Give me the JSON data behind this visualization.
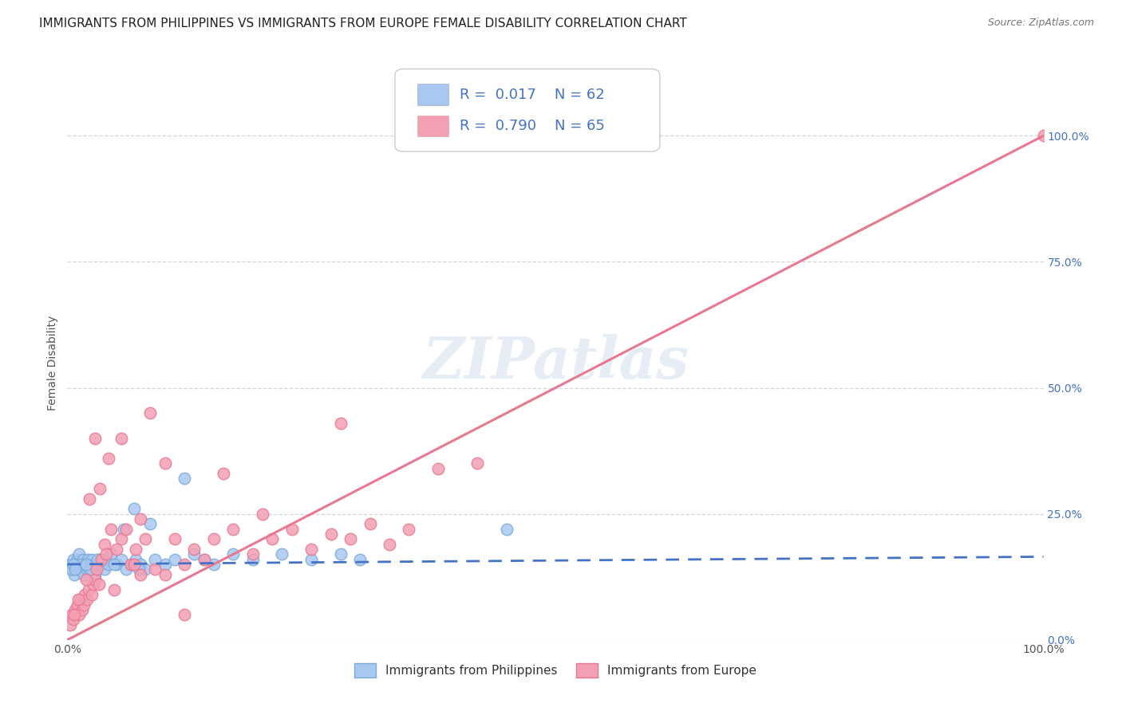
{
  "title": "IMMIGRANTS FROM PHILIPPINES VS IMMIGRANTS FROM EUROPE FEMALE DISABILITY CORRELATION CHART",
  "source": "Source: ZipAtlas.com",
  "ylabel": "Female Disability",
  "ytick_labels": [
    "0.0%",
    "25.0%",
    "50.0%",
    "75.0%",
    "100.0%"
  ],
  "ytick_vals": [
    0,
    25,
    50,
    75,
    100
  ],
  "xlim": [
    0,
    100
  ],
  "ylim": [
    0,
    110
  ],
  "series1_label": "Immigrants from Philippines",
  "series2_label": "Immigrants from Europe",
  "series1_color": "#a8c8f0",
  "series2_color": "#f4a0b4",
  "series1_edge_color": "#7aaad8",
  "series2_edge_color": "#e87890",
  "series1_line_color": "#4472c4",
  "series2_line_color": "#e87890",
  "legend_r1": "0.017",
  "legend_n1": "62",
  "legend_r2": "0.790",
  "legend_n2": "65",
  "watermark": "ZIPatlas",
  "background_color": "#ffffff",
  "series1_x": [
    0.3,
    0.5,
    0.6,
    0.7,
    0.8,
    0.9,
    1.0,
    1.1,
    1.2,
    1.3,
    1.5,
    1.6,
    1.7,
    1.8,
    2.0,
    2.1,
    2.2,
    2.3,
    2.5,
    2.7,
    2.8,
    3.0,
    3.2,
    3.5,
    3.8,
    4.0,
    4.2,
    4.5,
    5.0,
    5.5,
    6.0,
    6.5,
    7.0,
    7.5,
    8.0,
    9.0,
    10.0,
    11.0,
    12.0,
    13.0,
    14.0,
    15.0,
    17.0,
    19.0,
    22.0,
    25.0,
    28.0,
    30.0,
    1.4,
    2.4,
    3.3,
    4.8,
    6.8,
    8.5,
    0.4,
    1.9,
    3.1,
    5.8,
    7.3,
    45.0,
    0.6,
    0.8
  ],
  "series1_y": [
    15,
    14,
    16,
    13,
    15,
    14,
    16,
    15,
    17,
    14,
    15,
    16,
    13,
    15,
    14,
    16,
    15,
    14,
    16,
    15,
    13,
    15,
    16,
    15,
    14,
    16,
    15,
    17,
    15,
    16,
    14,
    15,
    16,
    15,
    14,
    16,
    15,
    16,
    32,
    17,
    16,
    15,
    17,
    16,
    17,
    16,
    17,
    16,
    15,
    14,
    16,
    15,
    26,
    23,
    14,
    15,
    16,
    22,
    14,
    22,
    15,
    14
  ],
  "series2_x": [
    0.3,
    0.5,
    0.6,
    0.8,
    1.0,
    1.2,
    1.4,
    1.5,
    1.7,
    1.8,
    2.0,
    2.2,
    2.5,
    2.7,
    2.8,
    3.0,
    3.2,
    3.5,
    3.8,
    4.0,
    4.5,
    5.0,
    5.5,
    6.0,
    6.5,
    7.0,
    7.5,
    8.0,
    9.0,
    10.0,
    11.0,
    12.0,
    13.0,
    14.0,
    15.0,
    17.0,
    19.0,
    21.0,
    23.0,
    25.0,
    27.0,
    29.0,
    31.0,
    33.0,
    35.0,
    38.0,
    42.0,
    100.0,
    1.9,
    3.3,
    5.5,
    8.5,
    0.7,
    2.3,
    4.2,
    6.8,
    10.0,
    16.0,
    20.0,
    28.0,
    1.1,
    2.8,
    4.8,
    7.5,
    12.0
  ],
  "series2_y": [
    3,
    5,
    4,
    6,
    7,
    5,
    8,
    6,
    7,
    9,
    8,
    10,
    9,
    11,
    12,
    14,
    11,
    16,
    19,
    17,
    22,
    18,
    20,
    22,
    15,
    18,
    24,
    20,
    14,
    13,
    20,
    15,
    18,
    16,
    20,
    22,
    17,
    20,
    22,
    18,
    21,
    20,
    23,
    19,
    22,
    34,
    35,
    100,
    12,
    30,
    40,
    45,
    5,
    28,
    36,
    15,
    35,
    33,
    25,
    43,
    8,
    40,
    10,
    13,
    5
  ],
  "title_fontsize": 11,
  "source_fontsize": 9,
  "tick_fontsize": 10,
  "legend_fontsize": 13
}
